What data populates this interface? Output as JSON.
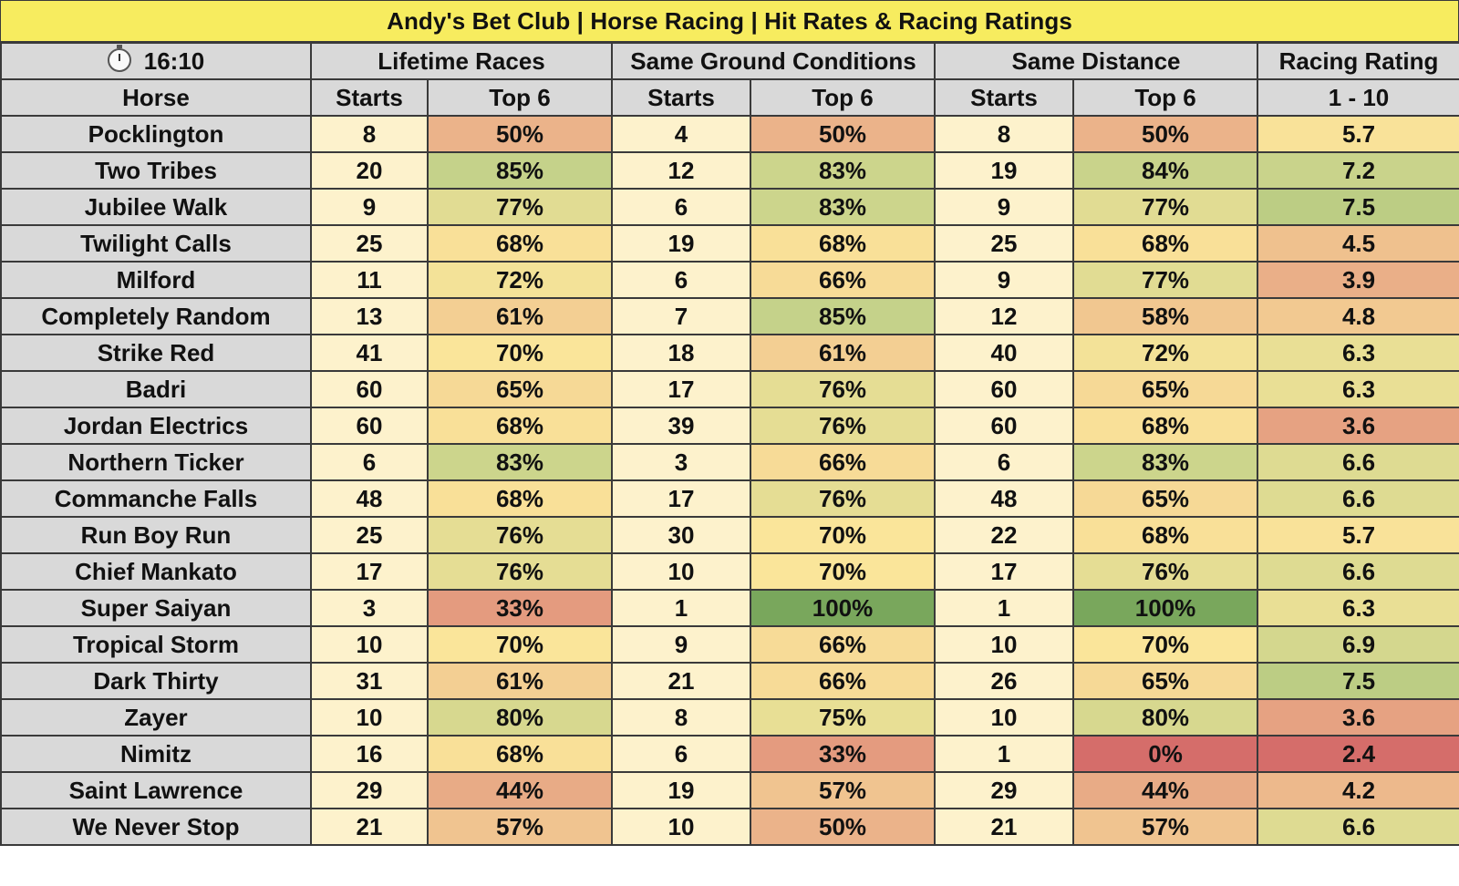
{
  "title": "Andy's Bet Club | Horse Racing | Hit Rates & Racing Ratings",
  "race_time": "16:10",
  "icons": {
    "clock": "stopwatch-icon"
  },
  "groups": {
    "lifetime": "Lifetime Races",
    "ground": "Same Ground Conditions",
    "distance": "Same Distance",
    "rating": "Racing Rating"
  },
  "subheaders": {
    "horse": "Horse",
    "starts": "Starts",
    "top6": "Top 6",
    "rating_scale": "1 - 10"
  },
  "colors": {
    "title_bg": "#f7ec5f",
    "header_bg": "#d9d9d9",
    "starts_bg": "#fdf2cc",
    "scale_red": "#d56d6a",
    "scale_orange": "#ebb38a",
    "scale_yellow": "#fae59a",
    "scale_green": "#c5d28a",
    "scale_dark_green": "#79a75c"
  },
  "rows": [
    {
      "horse": "Pocklington",
      "lt_starts": "8",
      "lt_top6": "50%",
      "gc_starts": "4",
      "gc_top6": "50%",
      "sd_starts": "8",
      "sd_top6": "50%",
      "rating": "5.7"
    },
    {
      "horse": "Two Tribes",
      "lt_starts": "20",
      "lt_top6": "85%",
      "gc_starts": "12",
      "gc_top6": "83%",
      "sd_starts": "19",
      "sd_top6": "84%",
      "rating": "7.2"
    },
    {
      "horse": "Jubilee Walk",
      "lt_starts": "9",
      "lt_top6": "77%",
      "gc_starts": "6",
      "gc_top6": "83%",
      "sd_starts": "9",
      "sd_top6": "77%",
      "rating": "7.5"
    },
    {
      "horse": "Twilight Calls",
      "lt_starts": "25",
      "lt_top6": "68%",
      "gc_starts": "19",
      "gc_top6": "68%",
      "sd_starts": "25",
      "sd_top6": "68%",
      "rating": "4.5"
    },
    {
      "horse": "Milford",
      "lt_starts": "11",
      "lt_top6": "72%",
      "gc_starts": "6",
      "gc_top6": "66%",
      "sd_starts": "9",
      "sd_top6": "77%",
      "rating": "3.9"
    },
    {
      "horse": "Completely Random",
      "lt_starts": "13",
      "lt_top6": "61%",
      "gc_starts": "7",
      "gc_top6": "85%",
      "sd_starts": "12",
      "sd_top6": "58%",
      "rating": "4.8"
    },
    {
      "horse": "Strike Red",
      "lt_starts": "41",
      "lt_top6": "70%",
      "gc_starts": "18",
      "gc_top6": "61%",
      "sd_starts": "40",
      "sd_top6": "72%",
      "rating": "6.3"
    },
    {
      "horse": "Badri",
      "lt_starts": "60",
      "lt_top6": "65%",
      "gc_starts": "17",
      "gc_top6": "76%",
      "sd_starts": "60",
      "sd_top6": "65%",
      "rating": "6.3"
    },
    {
      "horse": "Jordan Electrics",
      "lt_starts": "60",
      "lt_top6": "68%",
      "gc_starts": "39",
      "gc_top6": "76%",
      "sd_starts": "60",
      "sd_top6": "68%",
      "rating": "3.6"
    },
    {
      "horse": "Northern Ticker",
      "lt_starts": "6",
      "lt_top6": "83%",
      "gc_starts": "3",
      "gc_top6": "66%",
      "sd_starts": "6",
      "sd_top6": "83%",
      "rating": "6.6"
    },
    {
      "horse": "Commanche Falls",
      "lt_starts": "48",
      "lt_top6": "68%",
      "gc_starts": "17",
      "gc_top6": "76%",
      "sd_starts": "48",
      "sd_top6": "65%",
      "rating": "6.6"
    },
    {
      "horse": "Run Boy Run",
      "lt_starts": "25",
      "lt_top6": "76%",
      "gc_starts": "30",
      "gc_top6": "70%",
      "sd_starts": "22",
      "sd_top6": "68%",
      "rating": "5.7"
    },
    {
      "horse": "Chief Mankato",
      "lt_starts": "17",
      "lt_top6": "76%",
      "gc_starts": "10",
      "gc_top6": "70%",
      "sd_starts": "17",
      "sd_top6": "76%",
      "rating": "6.6"
    },
    {
      "horse": "Super Saiyan",
      "lt_starts": "3",
      "lt_top6": "33%",
      "gc_starts": "1",
      "gc_top6": "100%",
      "sd_starts": "1",
      "sd_top6": "100%",
      "rating": "6.3"
    },
    {
      "horse": "Tropical Storm",
      "lt_starts": "10",
      "lt_top6": "70%",
      "gc_starts": "9",
      "gc_top6": "66%",
      "sd_starts": "10",
      "sd_top6": "70%",
      "rating": "6.9"
    },
    {
      "horse": "Dark Thirty",
      "lt_starts": "31",
      "lt_top6": "61%",
      "gc_starts": "21",
      "gc_top6": "66%",
      "sd_starts": "26",
      "sd_top6": "65%",
      "rating": "7.5"
    },
    {
      "horse": "Zayer",
      "lt_starts": "10",
      "lt_top6": "80%",
      "gc_starts": "8",
      "gc_top6": "75%",
      "sd_starts": "10",
      "sd_top6": "80%",
      "rating": "3.6"
    },
    {
      "horse": "Nimitz",
      "lt_starts": "16",
      "lt_top6": "68%",
      "gc_starts": "6",
      "gc_top6": "33%",
      "sd_starts": "1",
      "sd_top6": "0%",
      "rating": "2.4"
    },
    {
      "horse": "Saint Lawrence",
      "lt_starts": "29",
      "lt_top6": "44%",
      "gc_starts": "19",
      "gc_top6": "57%",
      "sd_starts": "29",
      "sd_top6": "44%",
      "rating": "4.2"
    },
    {
      "horse": "We Never Stop",
      "lt_starts": "21",
      "lt_top6": "57%",
      "gc_starts": "10",
      "gc_top6": "50%",
      "sd_starts": "21",
      "sd_top6": "57%",
      "rating": "6.6"
    }
  ]
}
